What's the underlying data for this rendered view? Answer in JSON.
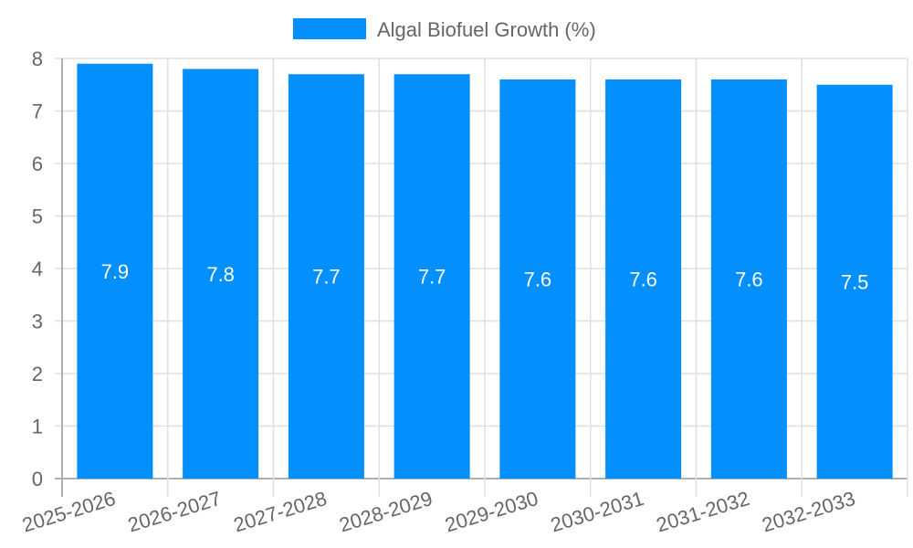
{
  "legend": {
    "label": "Algal Biofuel Growth (%)",
    "color": "#038ffc"
  },
  "chart_data": {
    "type": "bar",
    "title": "",
    "xlabel": "",
    "ylabel": "",
    "ylim": [
      0,
      8
    ],
    "yticks": [
      0,
      1,
      2,
      3,
      4,
      5,
      6,
      7,
      8
    ],
    "grid": true,
    "legend_position": "top",
    "categories": [
      "2025-2026",
      "2026-2027",
      "2027-2028",
      "2028-2029",
      "2029-2030",
      "2030-2031",
      "2031-2032",
      "2032-2033"
    ],
    "series": [
      {
        "name": "Algal Biofuel Growth (%)",
        "color": "#038ffc",
        "values": [
          7.9,
          7.8,
          7.7,
          7.7,
          7.6,
          7.6,
          7.6,
          7.5
        ]
      }
    ],
    "data_labels": [
      "7.9",
      "7.8",
      "7.7",
      "7.7",
      "7.6",
      "7.6",
      "7.6",
      "7.5"
    ]
  }
}
